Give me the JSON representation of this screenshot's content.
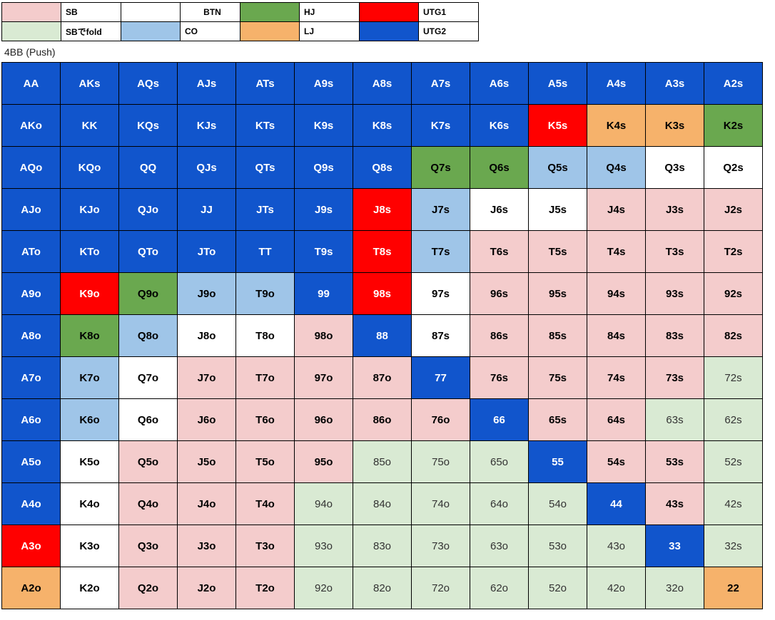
{
  "legend": [
    [
      {
        "label": "SB",
        "color": "#f4cccc"
      },
      {
        "label": "BTN",
        "color": "#ffffff"
      },
      {
        "label": "HJ",
        "color": "#6aa84f"
      },
      {
        "label": "UTG1",
        "color": "#ff0000"
      }
    ],
    [
      {
        "label": "SBでfold",
        "color": "#d9ead3"
      },
      {
        "label": "CO",
        "color": "#9fc5e8"
      },
      {
        "label": "LJ",
        "color": "#f6b26b"
      },
      {
        "label": "UTG2",
        "color": "#1155cc"
      }
    ]
  ],
  "subtitle": "4BB (Push)",
  "grid": [
    [
      [
        "AA",
        "UTG2"
      ],
      [
        "AKs",
        "UTG2"
      ],
      [
        "AQs",
        "UTG2"
      ],
      [
        "AJs",
        "UTG2"
      ],
      [
        "ATs",
        "UTG2"
      ],
      [
        "A9s",
        "UTG2"
      ],
      [
        "A8s",
        "UTG2"
      ],
      [
        "A7s",
        "UTG2"
      ],
      [
        "A6s",
        "UTG2"
      ],
      [
        "A5s",
        "UTG2"
      ],
      [
        "A4s",
        "UTG2"
      ],
      [
        "A3s",
        "UTG2"
      ],
      [
        "A2s",
        "UTG2"
      ]
    ],
    [
      [
        "AKo",
        "UTG2"
      ],
      [
        "KK",
        "UTG2"
      ],
      [
        "KQs",
        "UTG2"
      ],
      [
        "KJs",
        "UTG2"
      ],
      [
        "KTs",
        "UTG2"
      ],
      [
        "K9s",
        "UTG2"
      ],
      [
        "K8s",
        "UTG2"
      ],
      [
        "K7s",
        "UTG2"
      ],
      [
        "K6s",
        "UTG2"
      ],
      [
        "K5s",
        "UTG1"
      ],
      [
        "K4s",
        "LJ"
      ],
      [
        "K3s",
        "LJ"
      ],
      [
        "K2s",
        "HJ"
      ]
    ],
    [
      [
        "AQo",
        "UTG2"
      ],
      [
        "KQo",
        "UTG2"
      ],
      [
        "QQ",
        "UTG2"
      ],
      [
        "QJs",
        "UTG2"
      ],
      [
        "QTs",
        "UTG2"
      ],
      [
        "Q9s",
        "UTG2"
      ],
      [
        "Q8s",
        "UTG2"
      ],
      [
        "Q7s",
        "HJ"
      ],
      [
        "Q6s",
        "HJ"
      ],
      [
        "Q5s",
        "CO"
      ],
      [
        "Q4s",
        "CO"
      ],
      [
        "Q3s",
        "BTN"
      ],
      [
        "Q2s",
        "BTN"
      ]
    ],
    [
      [
        "AJo",
        "UTG2"
      ],
      [
        "KJo",
        "UTG2"
      ],
      [
        "QJo",
        "UTG2"
      ],
      [
        "JJ",
        "UTG2"
      ],
      [
        "JTs",
        "UTG2"
      ],
      [
        "J9s",
        "UTG2"
      ],
      [
        "J8s",
        "UTG1"
      ],
      [
        "J7s",
        "CO"
      ],
      [
        "J6s",
        "BTN"
      ],
      [
        "J5s",
        "BTN"
      ],
      [
        "J4s",
        "SB"
      ],
      [
        "J3s",
        "SB"
      ],
      [
        "J2s",
        "SB"
      ]
    ],
    [
      [
        "ATo",
        "UTG2"
      ],
      [
        "KTo",
        "UTG2"
      ],
      [
        "QTo",
        "UTG2"
      ],
      [
        "JTo",
        "UTG2"
      ],
      [
        "TT",
        "UTG2"
      ],
      [
        "T9s",
        "UTG2"
      ],
      [
        "T8s",
        "UTG1"
      ],
      [
        "T7s",
        "CO"
      ],
      [
        "T6s",
        "SB"
      ],
      [
        "T5s",
        "SB"
      ],
      [
        "T4s",
        "SB"
      ],
      [
        "T3s",
        "SB"
      ],
      [
        "T2s",
        "SB"
      ]
    ],
    [
      [
        "A9o",
        "UTG2"
      ],
      [
        "K9o",
        "UTG1"
      ],
      [
        "Q9o",
        "HJ"
      ],
      [
        "J9o",
        "CO"
      ],
      [
        "T9o",
        "CO"
      ],
      [
        "99",
        "UTG2"
      ],
      [
        "98s",
        "UTG1"
      ],
      [
        "97s",
        "BTN"
      ],
      [
        "96s",
        "SB"
      ],
      [
        "95s",
        "SB"
      ],
      [
        "94s",
        "SB"
      ],
      [
        "93s",
        "SB"
      ],
      [
        "92s",
        "SB"
      ]
    ],
    [
      [
        "A8o",
        "UTG2"
      ],
      [
        "K8o",
        "HJ"
      ],
      [
        "Q8o",
        "CO"
      ],
      [
        "J8o",
        "BTN"
      ],
      [
        "T8o",
        "BTN"
      ],
      [
        "98o",
        "SB"
      ],
      [
        "88",
        "UTG2"
      ],
      [
        "87s",
        "BTN"
      ],
      [
        "86s",
        "SB"
      ],
      [
        "85s",
        "SB"
      ],
      [
        "84s",
        "SB"
      ],
      [
        "83s",
        "SB"
      ],
      [
        "82s",
        "SB"
      ]
    ],
    [
      [
        "A7o",
        "UTG2"
      ],
      [
        "K7o",
        "CO"
      ],
      [
        "Q7o",
        "BTN"
      ],
      [
        "J7o",
        "SB"
      ],
      [
        "T7o",
        "SB"
      ],
      [
        "97o",
        "SB"
      ],
      [
        "87o",
        "SB"
      ],
      [
        "77",
        "UTG2"
      ],
      [
        "76s",
        "SB"
      ],
      [
        "75s",
        "SB"
      ],
      [
        "74s",
        "SB"
      ],
      [
        "73s",
        "SB"
      ],
      [
        "72s",
        "F"
      ]
    ],
    [
      [
        "A6o",
        "UTG2"
      ],
      [
        "K6o",
        "CO"
      ],
      [
        "Q6o",
        "BTN"
      ],
      [
        "J6o",
        "SB"
      ],
      [
        "T6o",
        "SB"
      ],
      [
        "96o",
        "SB"
      ],
      [
        "86o",
        "SB"
      ],
      [
        "76o",
        "SB"
      ],
      [
        "66",
        "UTG2"
      ],
      [
        "65s",
        "SB"
      ],
      [
        "64s",
        "SB"
      ],
      [
        "63s",
        "F"
      ],
      [
        "62s",
        "F"
      ]
    ],
    [
      [
        "A5o",
        "UTG2"
      ],
      [
        "K5o",
        "BTN"
      ],
      [
        "Q5o",
        "SB"
      ],
      [
        "J5o",
        "SB"
      ],
      [
        "T5o",
        "SB"
      ],
      [
        "95o",
        "SB"
      ],
      [
        "85o",
        "F"
      ],
      [
        "75o",
        "F"
      ],
      [
        "65o",
        "F"
      ],
      [
        "55",
        "UTG2"
      ],
      [
        "54s",
        "SB"
      ],
      [
        "53s",
        "SB"
      ],
      [
        "52s",
        "F"
      ]
    ],
    [
      [
        "A4o",
        "UTG2"
      ],
      [
        "K4o",
        "BTN"
      ],
      [
        "Q4o",
        "SB"
      ],
      [
        "J4o",
        "SB"
      ],
      [
        "T4o",
        "SB"
      ],
      [
        "94o",
        "F"
      ],
      [
        "84o",
        "F"
      ],
      [
        "74o",
        "F"
      ],
      [
        "64o",
        "F"
      ],
      [
        "54o",
        "F"
      ],
      [
        "44",
        "UTG2"
      ],
      [
        "43s",
        "SB"
      ],
      [
        "42s",
        "F"
      ]
    ],
    [
      [
        "A3o",
        "UTG1"
      ],
      [
        "K3o",
        "BTN"
      ],
      [
        "Q3o",
        "SB"
      ],
      [
        "J3o",
        "SB"
      ],
      [
        "T3o",
        "SB"
      ],
      [
        "93o",
        "F"
      ],
      [
        "83o",
        "F"
      ],
      [
        "73o",
        "F"
      ],
      [
        "63o",
        "F"
      ],
      [
        "53o",
        "F"
      ],
      [
        "43o",
        "F"
      ],
      [
        "33",
        "UTG2"
      ],
      [
        "32s",
        "F"
      ]
    ],
    [
      [
        "A2o",
        "LJ"
      ],
      [
        "K2o",
        "BTN"
      ],
      [
        "Q2o",
        "SB"
      ],
      [
        "J2o",
        "SB"
      ],
      [
        "T2o",
        "SB"
      ],
      [
        "92o",
        "F"
      ],
      [
        "82o",
        "F"
      ],
      [
        "72o",
        "F"
      ],
      [
        "62o",
        "F"
      ],
      [
        "52o",
        "F"
      ],
      [
        "42o",
        "F"
      ],
      [
        "32o",
        "F"
      ],
      [
        "22",
        "LJ"
      ]
    ]
  ]
}
